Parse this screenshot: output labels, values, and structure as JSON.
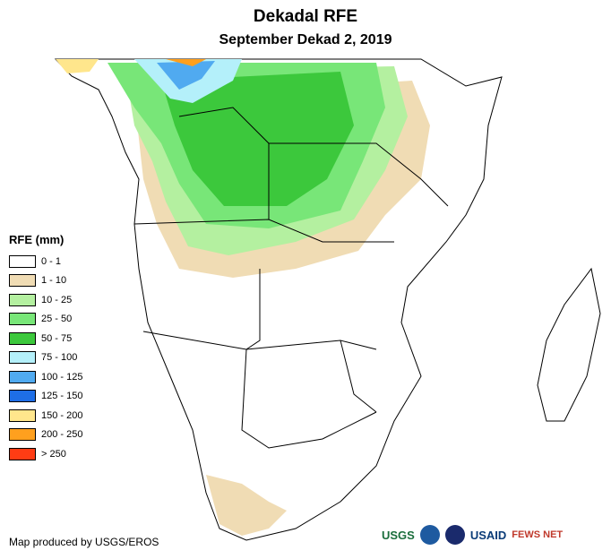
{
  "title": "Dekadal RFE",
  "subtitle": "September Dekad 2, 2019",
  "legend": {
    "title": "RFE (mm)",
    "items": [
      {
        "label": "0 - 1",
        "color": "#ffffff"
      },
      {
        "label": "1 - 10",
        "color": "#f0dcb4"
      },
      {
        "label": "10 - 25",
        "color": "#b4f0a0"
      },
      {
        "label": "25 - 50",
        "color": "#78e678"
      },
      {
        "label": "50 - 75",
        "color": "#3cc83c"
      },
      {
        "label": "75 - 100",
        "color": "#b4f0fa"
      },
      {
        "label": "100 - 125",
        "color": "#50aaf0"
      },
      {
        "label": "125 - 150",
        "color": "#1e6ee6"
      },
      {
        "label": "150 - 200",
        "color": "#ffe68c"
      },
      {
        "label": "200 - 250",
        "color": "#ffa01e"
      },
      {
        "label": "> 250",
        "color": "#ff3c14"
      }
    ]
  },
  "credit": "Map produced by USGS/EROS",
  "logos": [
    "USGS",
    "USAID",
    "FEWS NET"
  ]
}
